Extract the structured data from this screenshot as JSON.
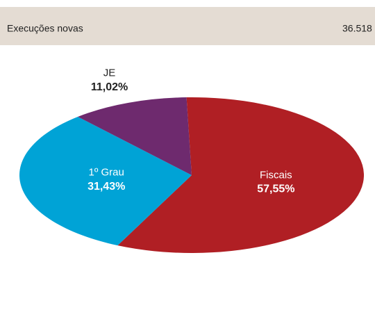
{
  "header": {
    "label": "Execuções novas",
    "value": "36.518"
  },
  "chart_data": {
    "type": "pie",
    "categories": [
      "Fiscais",
      "1º Grau",
      "JE"
    ],
    "values": [
      57.55,
      31.43,
      11.02
    ],
    "value_labels": [
      "57,55%",
      "31,43%",
      "11,02%"
    ],
    "colors": [
      "#b01f24",
      "#00a3d6",
      "#6e2a6e"
    ]
  }
}
